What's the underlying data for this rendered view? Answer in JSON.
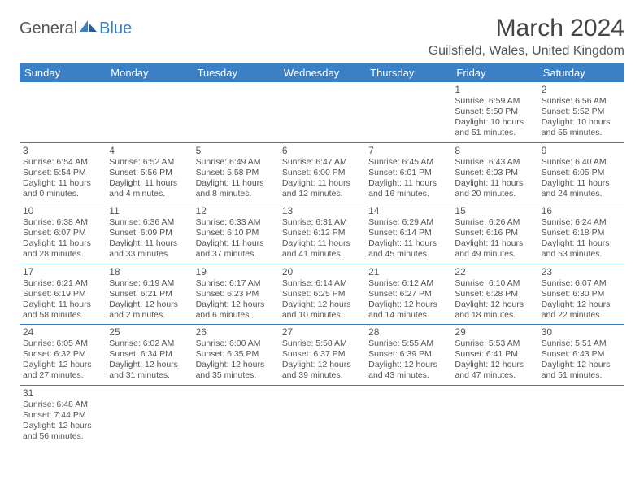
{
  "logo": {
    "general": "General",
    "blue": "Blue"
  },
  "title": "March 2024",
  "location": "Guilsfield, Wales, United Kingdom",
  "colors": {
    "accent": "#3b7fc4",
    "text": "#555555",
    "bg": "#ffffff"
  },
  "dayHeaders": [
    "Sunday",
    "Monday",
    "Tuesday",
    "Wednesday",
    "Thursday",
    "Friday",
    "Saturday"
  ],
  "weeks": [
    [
      null,
      null,
      null,
      null,
      null,
      {
        "n": "1",
        "sr": "Sunrise: 6:59 AM",
        "ss": "Sunset: 5:50 PM",
        "d1": "Daylight: 10 hours",
        "d2": "and 51 minutes."
      },
      {
        "n": "2",
        "sr": "Sunrise: 6:56 AM",
        "ss": "Sunset: 5:52 PM",
        "d1": "Daylight: 10 hours",
        "d2": "and 55 minutes."
      }
    ],
    [
      {
        "n": "3",
        "sr": "Sunrise: 6:54 AM",
        "ss": "Sunset: 5:54 PM",
        "d1": "Daylight: 11 hours",
        "d2": "and 0 minutes."
      },
      {
        "n": "4",
        "sr": "Sunrise: 6:52 AM",
        "ss": "Sunset: 5:56 PM",
        "d1": "Daylight: 11 hours",
        "d2": "and 4 minutes."
      },
      {
        "n": "5",
        "sr": "Sunrise: 6:49 AM",
        "ss": "Sunset: 5:58 PM",
        "d1": "Daylight: 11 hours",
        "d2": "and 8 minutes."
      },
      {
        "n": "6",
        "sr": "Sunrise: 6:47 AM",
        "ss": "Sunset: 6:00 PM",
        "d1": "Daylight: 11 hours",
        "d2": "and 12 minutes."
      },
      {
        "n": "7",
        "sr": "Sunrise: 6:45 AM",
        "ss": "Sunset: 6:01 PM",
        "d1": "Daylight: 11 hours",
        "d2": "and 16 minutes."
      },
      {
        "n": "8",
        "sr": "Sunrise: 6:43 AM",
        "ss": "Sunset: 6:03 PM",
        "d1": "Daylight: 11 hours",
        "d2": "and 20 minutes."
      },
      {
        "n": "9",
        "sr": "Sunrise: 6:40 AM",
        "ss": "Sunset: 6:05 PM",
        "d1": "Daylight: 11 hours",
        "d2": "and 24 minutes."
      }
    ],
    [
      {
        "n": "10",
        "sr": "Sunrise: 6:38 AM",
        "ss": "Sunset: 6:07 PM",
        "d1": "Daylight: 11 hours",
        "d2": "and 28 minutes."
      },
      {
        "n": "11",
        "sr": "Sunrise: 6:36 AM",
        "ss": "Sunset: 6:09 PM",
        "d1": "Daylight: 11 hours",
        "d2": "and 33 minutes."
      },
      {
        "n": "12",
        "sr": "Sunrise: 6:33 AM",
        "ss": "Sunset: 6:10 PM",
        "d1": "Daylight: 11 hours",
        "d2": "and 37 minutes."
      },
      {
        "n": "13",
        "sr": "Sunrise: 6:31 AM",
        "ss": "Sunset: 6:12 PM",
        "d1": "Daylight: 11 hours",
        "d2": "and 41 minutes."
      },
      {
        "n": "14",
        "sr": "Sunrise: 6:29 AM",
        "ss": "Sunset: 6:14 PM",
        "d1": "Daylight: 11 hours",
        "d2": "and 45 minutes."
      },
      {
        "n": "15",
        "sr": "Sunrise: 6:26 AM",
        "ss": "Sunset: 6:16 PM",
        "d1": "Daylight: 11 hours",
        "d2": "and 49 minutes."
      },
      {
        "n": "16",
        "sr": "Sunrise: 6:24 AM",
        "ss": "Sunset: 6:18 PM",
        "d1": "Daylight: 11 hours",
        "d2": "and 53 minutes."
      }
    ],
    [
      {
        "n": "17",
        "sr": "Sunrise: 6:21 AM",
        "ss": "Sunset: 6:19 PM",
        "d1": "Daylight: 11 hours",
        "d2": "and 58 minutes."
      },
      {
        "n": "18",
        "sr": "Sunrise: 6:19 AM",
        "ss": "Sunset: 6:21 PM",
        "d1": "Daylight: 12 hours",
        "d2": "and 2 minutes."
      },
      {
        "n": "19",
        "sr": "Sunrise: 6:17 AM",
        "ss": "Sunset: 6:23 PM",
        "d1": "Daylight: 12 hours",
        "d2": "and 6 minutes."
      },
      {
        "n": "20",
        "sr": "Sunrise: 6:14 AM",
        "ss": "Sunset: 6:25 PM",
        "d1": "Daylight: 12 hours",
        "d2": "and 10 minutes."
      },
      {
        "n": "21",
        "sr": "Sunrise: 6:12 AM",
        "ss": "Sunset: 6:27 PM",
        "d1": "Daylight: 12 hours",
        "d2": "and 14 minutes."
      },
      {
        "n": "22",
        "sr": "Sunrise: 6:10 AM",
        "ss": "Sunset: 6:28 PM",
        "d1": "Daylight: 12 hours",
        "d2": "and 18 minutes."
      },
      {
        "n": "23",
        "sr": "Sunrise: 6:07 AM",
        "ss": "Sunset: 6:30 PM",
        "d1": "Daylight: 12 hours",
        "d2": "and 22 minutes."
      }
    ],
    [
      {
        "n": "24",
        "sr": "Sunrise: 6:05 AM",
        "ss": "Sunset: 6:32 PM",
        "d1": "Daylight: 12 hours",
        "d2": "and 27 minutes."
      },
      {
        "n": "25",
        "sr": "Sunrise: 6:02 AM",
        "ss": "Sunset: 6:34 PM",
        "d1": "Daylight: 12 hours",
        "d2": "and 31 minutes."
      },
      {
        "n": "26",
        "sr": "Sunrise: 6:00 AM",
        "ss": "Sunset: 6:35 PM",
        "d1": "Daylight: 12 hours",
        "d2": "and 35 minutes."
      },
      {
        "n": "27",
        "sr": "Sunrise: 5:58 AM",
        "ss": "Sunset: 6:37 PM",
        "d1": "Daylight: 12 hours",
        "d2": "and 39 minutes."
      },
      {
        "n": "28",
        "sr": "Sunrise: 5:55 AM",
        "ss": "Sunset: 6:39 PM",
        "d1": "Daylight: 12 hours",
        "d2": "and 43 minutes."
      },
      {
        "n": "29",
        "sr": "Sunrise: 5:53 AM",
        "ss": "Sunset: 6:41 PM",
        "d1": "Daylight: 12 hours",
        "d2": "and 47 minutes."
      },
      {
        "n": "30",
        "sr": "Sunrise: 5:51 AM",
        "ss": "Sunset: 6:43 PM",
        "d1": "Daylight: 12 hours",
        "d2": "and 51 minutes."
      }
    ],
    [
      {
        "n": "31",
        "sr": "Sunrise: 6:48 AM",
        "ss": "Sunset: 7:44 PM",
        "d1": "Daylight: 12 hours",
        "d2": "and 56 minutes."
      },
      null,
      null,
      null,
      null,
      null,
      null
    ]
  ]
}
